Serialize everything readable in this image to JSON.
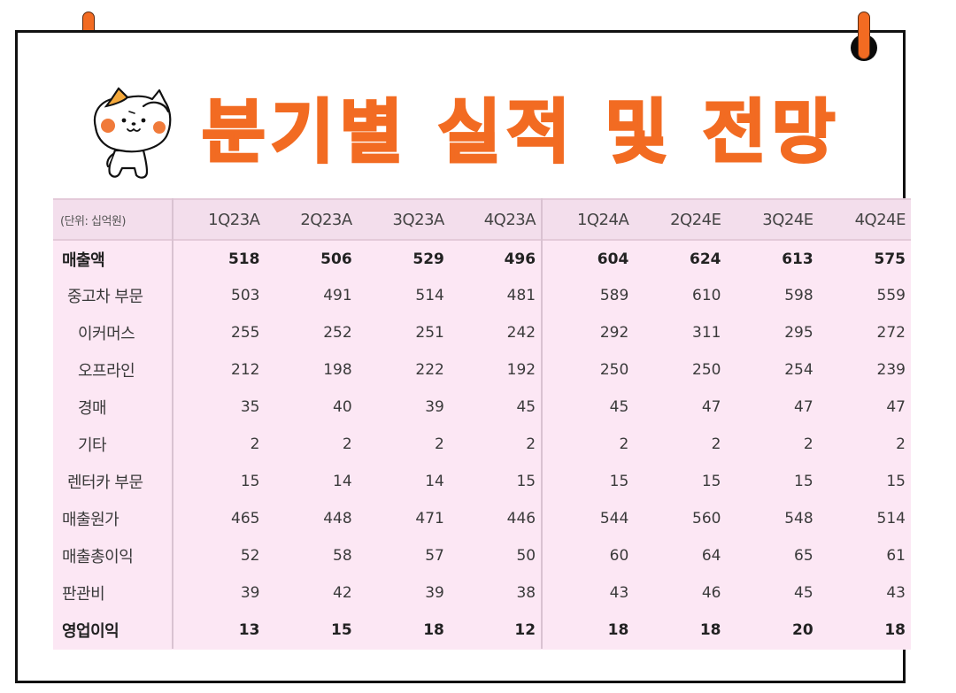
{
  "page": {
    "title": "분기별 실적 및 전망",
    "accent_color": "#f26b22",
    "table_bg": "#fce7f4",
    "header_bg": "#f3deec"
  },
  "decor": {
    "pins": [
      "pin-left",
      "pin-right"
    ],
    "mascot": "cat-saluting-mascot"
  },
  "table": {
    "unit_label": "(단위: 십억원)",
    "columns": [
      "1Q23A",
      "2Q23A",
      "3Q23A",
      "4Q23A",
      "1Q24A",
      "2Q24E",
      "3Q24E",
      "4Q24E"
    ],
    "rows": [
      {
        "label": "매출액",
        "bold": true,
        "indent": 0,
        "values": [
          "518",
          "506",
          "529",
          "496",
          "604",
          "624",
          "613",
          "575"
        ]
      },
      {
        "label": "중고차 부문",
        "bold": false,
        "indent": 1,
        "values": [
          "503",
          "491",
          "514",
          "481",
          "589",
          "610",
          "598",
          "559"
        ]
      },
      {
        "label": "이커머스",
        "bold": false,
        "indent": 2,
        "values": [
          "255",
          "252",
          "251",
          "242",
          "292",
          "311",
          "295",
          "272"
        ]
      },
      {
        "label": "오프라인",
        "bold": false,
        "indent": 2,
        "values": [
          "212",
          "198",
          "222",
          "192",
          "250",
          "250",
          "254",
          "239"
        ]
      },
      {
        "label": "경매",
        "bold": false,
        "indent": 2,
        "values": [
          "35",
          "40",
          "39",
          "45",
          "45",
          "47",
          "47",
          "47"
        ]
      },
      {
        "label": "기타",
        "bold": false,
        "indent": 2,
        "values": [
          "2",
          "2",
          "2",
          "2",
          "2",
          "2",
          "2",
          "2"
        ]
      },
      {
        "label": "렌터카 부문",
        "bold": false,
        "indent": 1,
        "values": [
          "15",
          "14",
          "14",
          "15",
          "15",
          "15",
          "15",
          "15"
        ]
      },
      {
        "label": "매출원가",
        "bold": false,
        "indent": 0,
        "values": [
          "465",
          "448",
          "471",
          "446",
          "544",
          "560",
          "548",
          "514"
        ]
      },
      {
        "label": "매출총이익",
        "bold": false,
        "indent": 0,
        "values": [
          "52",
          "58",
          "57",
          "50",
          "60",
          "64",
          "65",
          "61"
        ]
      },
      {
        "label": "판관비",
        "bold": false,
        "indent": 0,
        "values": [
          "39",
          "42",
          "39",
          "38",
          "43",
          "46",
          "45",
          "43"
        ]
      },
      {
        "label": "영업이익",
        "bold": true,
        "indent": 0,
        "values": [
          "13",
          "15",
          "18",
          "12",
          "18",
          "18",
          "20",
          "18"
        ]
      }
    ]
  }
}
